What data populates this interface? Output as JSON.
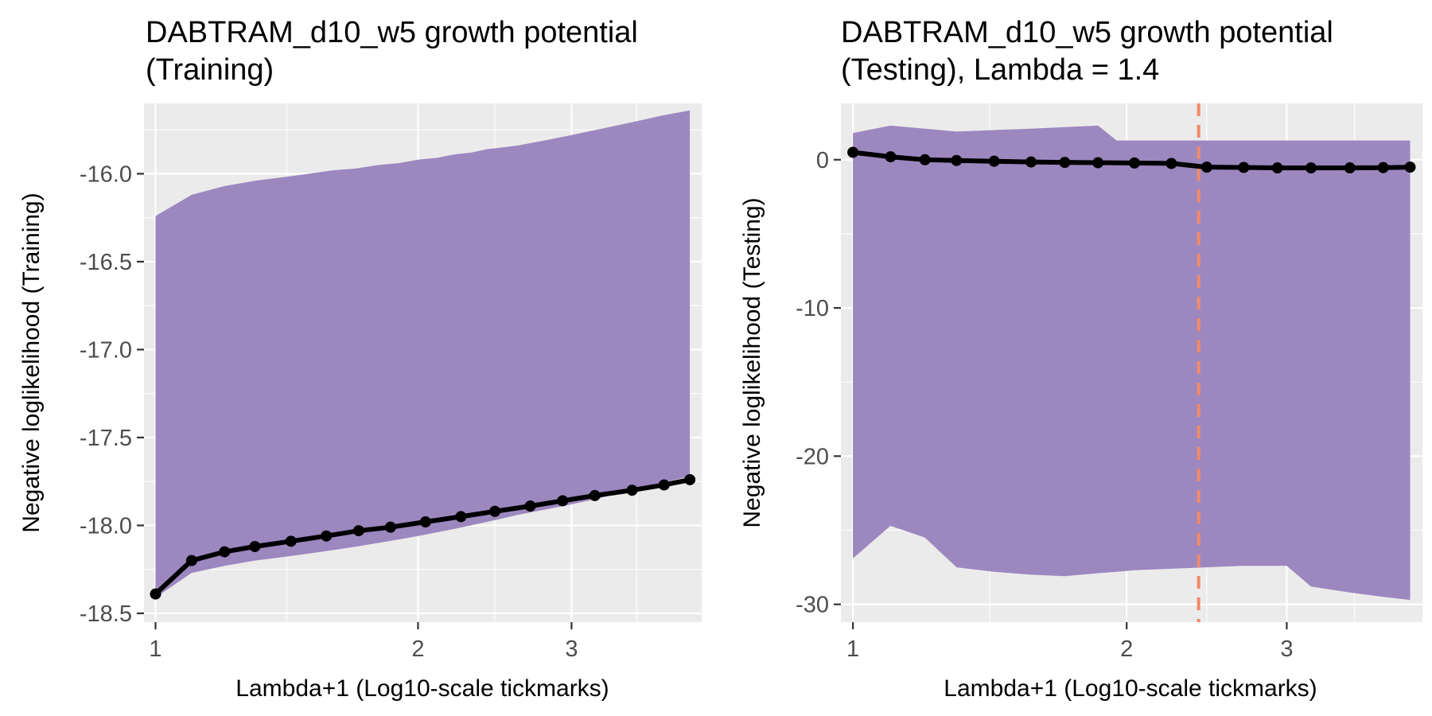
{
  "chart_data": [
    {
      "type": "line",
      "title_line1": "DABTRAM_d10_w5 growth potential",
      "title_line2": "(Training)",
      "xlabel": "Lambda+1 (Log10-scale tickmarks)",
      "ylabel": "Negative loglikelihood (Training)",
      "x_scale": "log10",
      "xlim": [
        0.97,
        4.23
      ],
      "ylim": [
        -18.55,
        -15.6
      ],
      "x_ticks": [
        1,
        2,
        3
      ],
      "x_tick_labels": [
        "1",
        "2",
        "3"
      ],
      "y_ticks": [
        -18.5,
        -18.0,
        -17.5,
        -17.0,
        -16.5,
        -16.0
      ],
      "y_tick_labels": [
        "-18.5",
        "-18.0",
        "-17.5",
        "-17.0",
        "-16.5",
        "-16.0"
      ],
      "band_color": "#9d87bf",
      "line_color": "#000000",
      "x": [
        1.0,
        1.1,
        1.2,
        1.3,
        1.4,
        1.5,
        1.6,
        1.7,
        1.8,
        1.9,
        2.0,
        2.1,
        2.2,
        2.3,
        2.4,
        2.5,
        2.6,
        2.8,
        3.0,
        3.2,
        3.5,
        3.8,
        4.1
      ],
      "x_line": [
        1.0,
        1.1,
        1.2,
        1.3,
        1.43,
        1.57,
        1.71,
        1.86,
        2.04,
        2.24,
        2.45,
        2.69,
        2.93,
        3.19,
        3.52,
        3.83,
        4.1
      ],
      "mean": [
        -18.39,
        -18.2,
        -18.15,
        -18.12,
        -18.09,
        -18.06,
        -18.03,
        -18.01,
        -17.98,
        -17.95,
        -17.92,
        -17.89,
        -17.86,
        -17.83,
        -17.8,
        -17.77,
        -17.74
      ],
      "upper": [
        -16.24,
        -16.12,
        -16.07,
        -16.04,
        -16.02,
        -16.0,
        -15.98,
        -15.97,
        -15.95,
        -15.94,
        -15.92,
        -15.91,
        -15.89,
        -15.88,
        -15.86,
        -15.85,
        -15.84,
        -15.81,
        -15.78,
        -15.75,
        -15.71,
        -15.67,
        -15.64
      ],
      "lower": [
        -18.41,
        -18.27,
        -18.23,
        -18.2,
        -18.18,
        -18.16,
        -18.14,
        -18.12,
        -18.1,
        -18.08,
        -18.06,
        -18.04,
        -18.02,
        -18.0,
        -17.98,
        -17.96,
        -17.94,
        -17.91,
        -17.88,
        -17.85,
        -17.8,
        -17.76,
        -17.72
      ],
      "grid": true,
      "legend": "none"
    },
    {
      "type": "line",
      "title_line1": "DABTRAM_d10_w5 growth potential",
      "title_line2": "(Testing), Lambda = 1.4",
      "xlabel": "Lambda+1 (Log10-scale tickmarks)",
      "ylabel": "Negative loglikelihood (Testing)",
      "x_scale": "log10",
      "xlim": [
        0.97,
        4.23
      ],
      "ylim": [
        -31.2,
        3.8
      ],
      "x_ticks": [
        1,
        2,
        3
      ],
      "x_tick_labels": [
        "1",
        "2",
        "3"
      ],
      "y_ticks": [
        -30,
        -20,
        -10,
        0
      ],
      "y_tick_labels": [
        "-30",
        "-20",
        "-10",
        "0"
      ],
      "band_color": "#9d87bf",
      "line_color": "#000000",
      "vline_x": 2.4,
      "vline_color": "#f08a6c",
      "x": [
        1.0,
        1.1,
        1.2,
        1.3,
        1.43,
        1.57,
        1.71,
        1.86,
        1.95,
        2.04,
        2.24,
        2.45,
        2.69,
        2.93,
        3.0,
        3.19,
        3.52,
        3.83,
        4.1
      ],
      "x_line": [
        1.0,
        1.1,
        1.2,
        1.3,
        1.43,
        1.57,
        1.71,
        1.86,
        2.04,
        2.24,
        2.45,
        2.69,
        2.93,
        3.19,
        3.52,
        3.83,
        4.1
      ],
      "mean": [
        0.5,
        0.2,
        0.0,
        -0.05,
        -0.1,
        -0.15,
        -0.18,
        -0.2,
        -0.22,
        -0.25,
        -0.5,
        -0.52,
        -0.55,
        -0.55,
        -0.55,
        -0.53,
        -0.5
      ],
      "upper": [
        1.8,
        2.3,
        2.1,
        1.9,
        2.0,
        2.1,
        2.2,
        2.3,
        1.3,
        1.3,
        1.3,
        1.3,
        1.3,
        1.3,
        1.3,
        1.3,
        1.3,
        1.3,
        1.3
      ],
      "lower": [
        -26.9,
        -24.7,
        -25.5,
        -27.5,
        -27.8,
        -28.0,
        -28.1,
        -27.9,
        -27.8,
        -27.7,
        -27.6,
        -27.5,
        -27.4,
        -27.4,
        -27.4,
        -28.8,
        -29.2,
        -29.5,
        -29.7
      ],
      "grid": true,
      "legend": "none"
    }
  ]
}
